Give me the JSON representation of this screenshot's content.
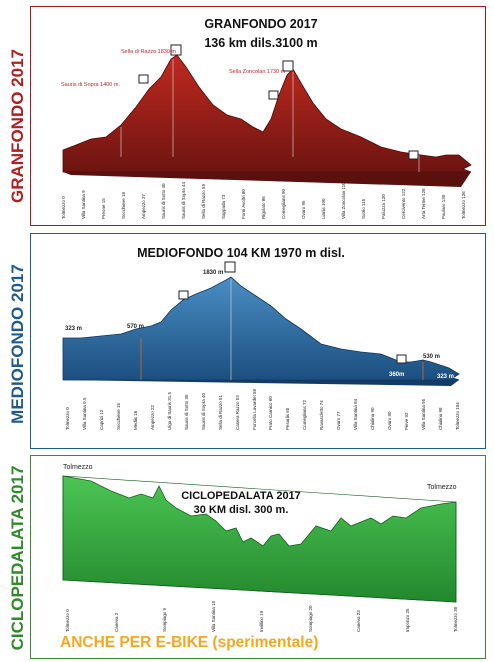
{
  "granfondo": {
    "side_label": "GRANFONDO 2017",
    "title_line1": "GRANFONDO 2017",
    "title_line2": "136 km  dils.3100 m",
    "annotations": [
      "Sella di Razzo 1830 m",
      "Sauris di Sopra 1400 m.",
      "Sella Zoncolan 1730 m"
    ],
    "colors": {
      "fill": "#8e1b17",
      "accent": "#b01e1e"
    },
    "km_labels": [
      "Tolmezzo 0",
      "Villa Santina 9",
      "Preone 15",
      "Socchieve 18",
      "Ampezzo 27",
      "Sauris di Sotto 40",
      "Sauris di Sopra 44",
      "Sella di Razzo 59",
      "Sappada 73",
      "Forni Avoltri 80",
      "Rigolato 86",
      "Comeglians 90",
      "Ovaro 95",
      "Liariis 100",
      "Villa Zoncolan 110",
      "Sutrio 115",
      "Paluzza 120",
      "Cercivento 122",
      "Arta Terme 126",
      "Paularo 130",
      "Tolmezzo 136"
    ]
  },
  "mediofondo": {
    "side_label": "MEDIOFONDO 2017",
    "title": "MEDIOFONDO 104 KM 1970 m disl.",
    "elev_labels": [
      "323 m",
      "570 m",
      "1830 m",
      "360m",
      "530 m",
      "323 m"
    ],
    "colors": {
      "fill": "#2a6fa5",
      "accent": "#1f5a8e"
    },
    "km_labels": [
      "Tolmezzo 0",
      "Villa Santina 9.5",
      "Caprizi 12",
      "Socchieve 15",
      "Mediis 16",
      "Ampezzo 22",
      "Ulga di Sauris 31.5",
      "Sauris di Sotto 35",
      "Sauris di Sopra 40",
      "Sella di Razzo 51",
      "Casera Razzo 53",
      "Forcella Lavardet 58",
      "Prato Carnico 60",
      "Pesariis 65",
      "Comeglians 72",
      "Ravascletto 74",
      "Ovaro 77",
      "Villa Santina 84",
      "Chialina 90",
      "Ovaro 90",
      "Pieve 92",
      "Villa Santina 95",
      "Chialina 98",
      "Tolmezzo 104"
    ]
  },
  "ciclopedalata": {
    "side_label": "CICLOPEDALATA 2017",
    "title_line1": "CICLOPEDALATA  2017",
    "title_line2": "30 KM disl. 300 m.",
    "start_label": "Tolmezzo",
    "end_label": "Tolmezzo",
    "colors": {
      "fill": "#3bb34a",
      "accent": "#2f8a2a"
    },
    "km_labels": [
      "Tolmezzo 0",
      "Caneva 2",
      "Sompiago 9",
      "Villa Santina 15",
      "Invillino 19",
      "Sompiago 20",
      "Caneva 23",
      "Imponzo 25",
      "Tolmezzo 30"
    ],
    "ebike_note": "ANCHE PER E-BIKE (sperimentale)"
  }
}
